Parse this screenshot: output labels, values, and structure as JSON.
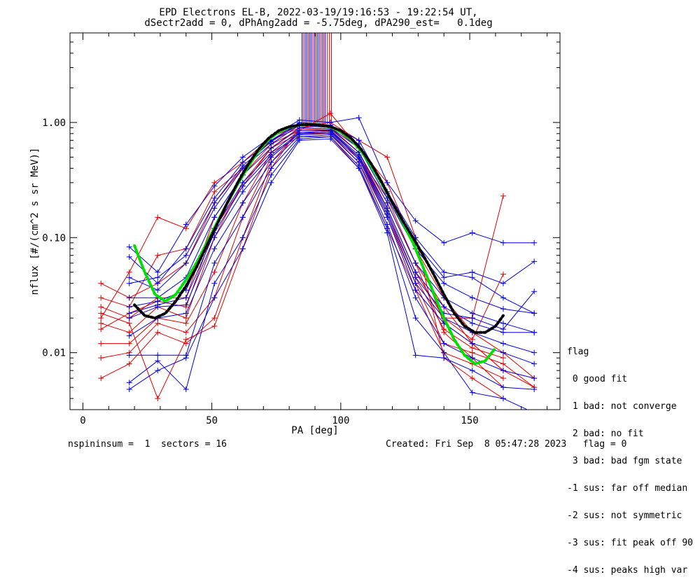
{
  "title": {
    "line1": "EPD Electrons EL-B, 2022-03-19/19:16:53 - 19:22:54 UT,",
    "line2": "dSectr2add = 0, dPhAng2add = -5.75deg, dPA290_est=   0.1deg"
  },
  "legend": {
    "header": "flag",
    "items": [
      " 0 good fit",
      " 1 bad: not converge",
      " 2 bad: no fit",
      " 3 bad: bad fgm state",
      "-1 sus: far off median",
      "-2 sus: not symmetric",
      "-3 sus: fit peak off 90",
      "-4 sus: peaks high var"
    ]
  },
  "footer": {
    "left": "nspininsum =  1  sectors = 16",
    "right": "Created: Fri Sep  8 05:47:28 2023   flag = 0"
  },
  "colors": {
    "red": "#e00000",
    "blue": "#0000e0",
    "green": "#00e000",
    "black": "#000000"
  },
  "chart_data": {
    "type": "line",
    "xlabel": "PA [deg]",
    "ylabel": "nflux [#/(cm^2 s sr MeV)]",
    "xlim": [
      -5,
      185
    ],
    "ylim": [
      0.0032,
      6.0
    ],
    "yscale": "log",
    "xticks": [
      0,
      50,
      100,
      150
    ],
    "yticks": [
      {
        "v": 0.01,
        "label": "0.01"
      },
      {
        "v": 0.1,
        "label": "0.10"
      },
      {
        "v": 1.0,
        "label": "1.00"
      }
    ],
    "pa_bins": [
      7,
      18,
      29,
      40,
      51,
      62,
      73,
      84,
      96,
      107,
      118,
      129,
      140,
      151,
      163,
      175
    ],
    "series": [
      {
        "color": "red",
        "values": [
          0.02,
          0.05,
          0.15,
          0.12,
          0.3,
          0.45,
          0.75,
          0.95,
          0.9,
          0.55,
          0.2,
          0.06,
          0.025,
          0.012,
          0.007,
          0.005
        ]
      },
      {
        "color": "red",
        "values": [
          0.04,
          0.03,
          0.04,
          0.06,
          0.2,
          0.4,
          0.7,
          0.9,
          0.95,
          0.6,
          0.25,
          0.08,
          0.03,
          0.015,
          0.01,
          0.006
        ]
      },
      {
        "color": "red",
        "values": [
          0.025,
          0.02,
          0.03,
          0.03,
          0.15,
          0.35,
          0.65,
          0.85,
          0.85,
          0.5,
          0.18,
          0.05,
          0.02,
          0.02,
          0.23,
          null
        ]
      },
      {
        "color": "red",
        "values": [
          0.018,
          0.015,
          0.025,
          0.02,
          0.1,
          0.3,
          0.6,
          0.8,
          0.8,
          0.45,
          0.15,
          0.04,
          0.012,
          0.01,
          0.008,
          0.005
        ]
      },
      {
        "color": "red",
        "values": [
          0.012,
          0.012,
          0.02,
          0.018,
          0.05,
          0.2,
          0.55,
          0.75,
          0.75,
          0.4,
          0.12,
          0.035,
          0.01,
          0.008,
          0.006,
          null
        ]
      },
      {
        "color": "red",
        "values": [
          0.009,
          0.01,
          0.018,
          0.015,
          0.03,
          0.15,
          0.5,
          0.8,
          0.85,
          0.5,
          0.22,
          0.06,
          0.015,
          0.009,
          0.005,
          null
        ]
      },
      {
        "color": "red",
        "values": [
          0.006,
          0.008,
          0.015,
          0.012,
          0.02,
          0.1,
          0.45,
          0.85,
          1.2,
          0.6,
          0.3,
          0.08,
          0.018,
          0.012,
          0.007,
          null
        ]
      },
      {
        "color": "red",
        "values": [
          0.022,
          0.018,
          0.004,
          0.013,
          0.017,
          0.08,
          0.4,
          0.9,
          1.0,
          0.7,
          0.5,
          0.1,
          0.009,
          0.006,
          0.004,
          null
        ]
      },
      {
        "color": "red",
        "values": [
          0.03,
          0.025,
          0.07,
          0.08,
          0.25,
          0.4,
          0.7,
          0.95,
          0.9,
          0.55,
          0.18,
          0.05,
          0.02,
          0.013,
          0.048,
          null
        ]
      },
      {
        "color": "red",
        "values": [
          0.016,
          0.022,
          0.028,
          0.025,
          0.12,
          0.28,
          0.6,
          0.88,
          0.86,
          0.48,
          0.16,
          0.045,
          0.016,
          0.011,
          0.009,
          null
        ]
      },
      {
        "color": "blue",
        "values": [
          null,
          0.083,
          0.05,
          0.13,
          0.28,
          0.5,
          0.75,
          1.05,
          1.0,
          1.1,
          0.3,
          0.14,
          0.09,
          0.11,
          0.09,
          0.09
        ]
      },
      {
        "color": "blue",
        "values": [
          null,
          0.068,
          0.04,
          0.08,
          0.22,
          0.45,
          0.7,
          1.0,
          0.95,
          0.7,
          0.25,
          0.1,
          0.05,
          0.045,
          0.03,
          0.022
        ]
      },
      {
        "color": "blue",
        "values": [
          null,
          0.045,
          0.035,
          0.06,
          0.18,
          0.4,
          0.65,
          0.95,
          0.9,
          0.6,
          0.22,
          0.08,
          0.04,
          0.03,
          0.024,
          0.022
        ]
      },
      {
        "color": "blue",
        "values": [
          null,
          0.03,
          0.03,
          0.045,
          0.15,
          0.35,
          0.6,
          0.9,
          0.88,
          0.55,
          0.2,
          0.06,
          0.03,
          0.022,
          0.018,
          0.015
        ]
      },
      {
        "color": "blue",
        "values": [
          null,
          0.025,
          0.028,
          0.035,
          0.12,
          0.3,
          0.55,
          0.85,
          0.86,
          0.52,
          0.18,
          0.05,
          0.025,
          0.018,
          0.015,
          0.015
        ]
      },
      {
        "color": "blue",
        "values": [
          null,
          0.02,
          0.025,
          0.026,
          0.1,
          0.25,
          0.5,
          0.8,
          0.82,
          0.5,
          0.16,
          0.04,
          0.02,
          0.015,
          0.012,
          0.01
        ]
      },
      {
        "color": "blue",
        "values": [
          null,
          0.014,
          0.02,
          0.022,
          0.08,
          0.2,
          0.45,
          0.78,
          0.8,
          0.48,
          0.15,
          0.035,
          0.018,
          0.012,
          0.01,
          0.008
        ]
      },
      {
        "color": "blue",
        "values": [
          null,
          0.0095,
          0.0095,
          0.0095,
          0.06,
          0.15,
          0.4,
          0.75,
          0.78,
          0.45,
          0.13,
          0.03,
          0.012,
          0.009,
          0.007,
          0.006
        ]
      },
      {
        "color": "blue",
        "values": [
          null,
          0.0055,
          0.0085,
          0.0048,
          0.04,
          0.1,
          0.35,
          0.72,
          0.75,
          0.42,
          0.12,
          0.02,
          0.01,
          0.0045,
          0.004,
          0.003
        ]
      },
      {
        "color": "blue",
        "values": [
          null,
          0.0048,
          0.007,
          0.009,
          0.03,
          0.08,
          0.3,
          0.7,
          0.72,
          0.4,
          0.11,
          0.0095,
          0.009,
          0.007,
          0.005,
          0.0048
        ]
      },
      {
        "color": "blue",
        "values": [
          null,
          0.04,
          0.045,
          0.07,
          0.2,
          0.42,
          0.68,
          0.98,
          0.92,
          0.65,
          0.24,
          0.09,
          0.045,
          0.05,
          0.04,
          0.062
        ]
      },
      {
        "color": "blue",
        "values": [
          null,
          0.022,
          0.026,
          0.03,
          0.11,
          0.28,
          0.52,
          0.82,
          0.84,
          0.5,
          0.17,
          0.045,
          0.022,
          0.02,
          0.016,
          0.034
        ]
      }
    ],
    "median_fit_black": {
      "x": [
        20,
        24,
        28,
        32,
        36,
        40,
        44,
        48,
        52,
        56,
        60,
        64,
        68,
        72,
        76,
        80,
        84,
        88,
        92,
        96,
        100,
        104,
        108,
        112,
        116,
        120,
        124,
        128,
        132,
        136,
        140,
        144,
        148,
        152,
        156,
        160,
        163
      ],
      "y": [
        0.026,
        0.021,
        0.02,
        0.022,
        0.028,
        0.038,
        0.055,
        0.085,
        0.13,
        0.2,
        0.3,
        0.43,
        0.58,
        0.73,
        0.85,
        0.92,
        0.95,
        0.96,
        0.95,
        0.92,
        0.85,
        0.73,
        0.58,
        0.43,
        0.3,
        0.2,
        0.14,
        0.1,
        0.07,
        0.048,
        0.032,
        0.022,
        0.017,
        0.015,
        0.015,
        0.017,
        0.021
      ]
    },
    "median_fit_green": {
      "x": [
        20,
        24,
        28,
        32,
        36,
        40,
        44,
        48,
        52,
        56,
        60,
        64,
        68,
        72,
        76,
        80,
        84,
        88,
        92,
        96,
        100,
        104,
        108,
        112,
        116,
        120,
        124,
        128,
        132,
        136,
        140,
        144,
        148,
        152,
        156,
        160
      ],
      "y": [
        0.085,
        0.05,
        0.032,
        0.028,
        0.032,
        0.043,
        0.06,
        0.09,
        0.135,
        0.2,
        0.29,
        0.41,
        0.56,
        0.71,
        0.83,
        0.91,
        0.95,
        0.96,
        0.95,
        0.91,
        0.83,
        0.71,
        0.56,
        0.41,
        0.29,
        0.2,
        0.135,
        0.09,
        0.055,
        0.033,
        0.02,
        0.013,
        0.0095,
        0.008,
        0.0085,
        0.011
      ]
    },
    "spikes": [
      {
        "x": 85.0,
        "color": "blue"
      },
      {
        "x": 85.6,
        "color": "red"
      },
      {
        "x": 86.2,
        "color": "blue"
      },
      {
        "x": 86.8,
        "color": "blue"
      },
      {
        "x": 87.4,
        "color": "red"
      },
      {
        "x": 88.0,
        "color": "blue"
      },
      {
        "x": 88.6,
        "color": "blue"
      },
      {
        "x": 89.2,
        "color": "red"
      },
      {
        "x": 89.8,
        "color": "blue"
      },
      {
        "x": 90.4,
        "color": "red"
      },
      {
        "x": 91.0,
        "color": "blue"
      },
      {
        "x": 91.6,
        "color": "blue"
      },
      {
        "x": 92.2,
        "color": "red"
      },
      {
        "x": 92.8,
        "color": "blue"
      },
      {
        "x": 93.4,
        "color": "red"
      },
      {
        "x": 94.0,
        "color": "blue"
      },
      {
        "x": 94.8,
        "color": "red"
      },
      {
        "x": 95.6,
        "color": "red"
      },
      {
        "x": 96.4,
        "color": "red"
      }
    ]
  }
}
